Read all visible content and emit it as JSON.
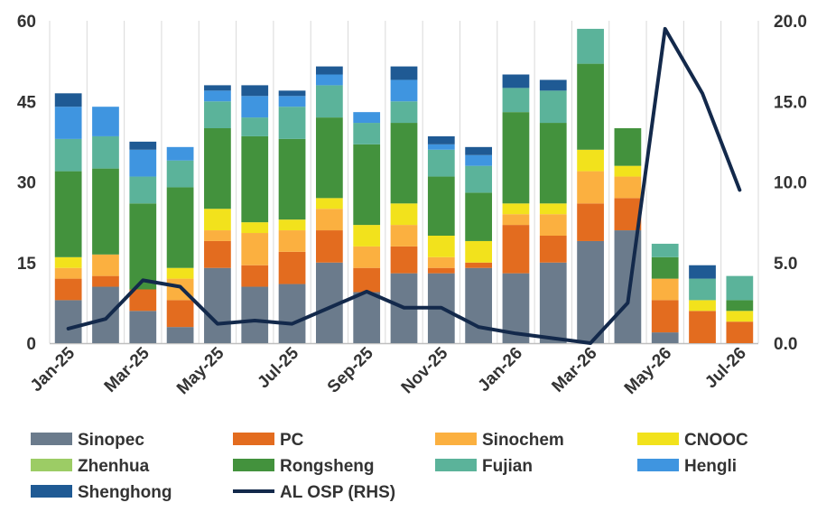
{
  "chart_data": {
    "type": "bar",
    "stacked": true,
    "title": "",
    "xlabel": "",
    "ylabel": "",
    "ylabel_right": "",
    "grid": "vertical",
    "legend_position": "bottom",
    "ylim": [
      0,
      60
    ],
    "ylim_right": [
      0,
      20
    ],
    "yticks": [
      "0",
      "15",
      "30",
      "45",
      "60"
    ],
    "yticks_right": [
      "0.0",
      "5.0",
      "10.0",
      "15.0",
      "20.0"
    ],
    "categories": [
      "Jan-25",
      "Feb-25",
      "Mar-25",
      "Apr-25",
      "May-25",
      "Jun-25",
      "Jul-25",
      "Aug-25",
      "Sep-25",
      "Oct-25",
      "Nov-25",
      "Dec-25",
      "Jan-26",
      "Feb-26",
      "Mar-26",
      "Apr-26",
      "May-26",
      "Jun-26",
      "Jul-26"
    ],
    "xtick_labels": [
      "Jan-25",
      "",
      "Mar-25",
      "",
      "May-25",
      "",
      "Jul-25",
      "",
      "Sep-25",
      "",
      "Nov-25",
      "",
      "Jan-26",
      "",
      "Mar-26",
      "",
      "May-26",
      "",
      "Jul-26"
    ],
    "series": [
      {
        "name": "Sinopec",
        "color": "#6b7b8c",
        "values": [
          8,
          10.5,
          6,
          3,
          14,
          10.5,
          11,
          15,
          9.5,
          13,
          13,
          14,
          13,
          15,
          19,
          21,
          2,
          0,
          0
        ]
      },
      {
        "name": "PC",
        "color": "#e36c1f",
        "values": [
          4,
          2,
          4,
          5,
          5,
          4,
          6,
          6,
          4.5,
          5,
          1,
          1,
          9,
          5,
          7,
          6,
          6,
          6,
          4
        ]
      },
      {
        "name": "Sinochem",
        "color": "#fbb040",
        "values": [
          2,
          4,
          0,
          4,
          2,
          6,
          4,
          4,
          4,
          4,
          2,
          0,
          2,
          4,
          6,
          4,
          4,
          0,
          0
        ]
      },
      {
        "name": "CNOOC",
        "color": "#f2e21c",
        "values": [
          2,
          0,
          0,
          2,
          4,
          2,
          2,
          2,
          4,
          4,
          4,
          4,
          2,
          2,
          4,
          2,
          0,
          2,
          2
        ]
      },
      {
        "name": "Zhenhua",
        "color": "#9ccc65",
        "values": [
          0,
          0,
          0,
          0,
          0,
          0,
          0,
          0,
          0,
          0,
          0,
          0,
          0,
          0,
          0,
          0,
          0,
          0,
          0
        ]
      },
      {
        "name": "Rongsheng",
        "color": "#43923d",
        "values": [
          16,
          16,
          16,
          15,
          15,
          16,
          15,
          15,
          15,
          15,
          11,
          9,
          17,
          15,
          16,
          7,
          4,
          0,
          2
        ]
      },
      {
        "name": "Fujian",
        "color": "#5bb39a",
        "values": [
          6,
          6,
          5,
          5,
          5,
          3.5,
          6,
          6,
          4,
          4,
          5,
          5,
          4.5,
          6,
          6.5,
          0,
          2.5,
          4,
          4.5
        ]
      },
      {
        "name": "Hengli",
        "color": "#3f95e0",
        "values": [
          6,
          5.5,
          5,
          2.5,
          2,
          4,
          2,
          2,
          2,
          4,
          1,
          2,
          0,
          0,
          0,
          0,
          0,
          0,
          0
        ]
      },
      {
        "name": "Shenghong",
        "color": "#1f5a94",
        "values": [
          2.5,
          0,
          1.5,
          0,
          1,
          2,
          1,
          1.5,
          0,
          2.5,
          1.5,
          1.5,
          2.5,
          2,
          0,
          0,
          0,
          2.5,
          0
        ]
      }
    ],
    "line_series": {
      "name": "AL OSP (RHS)",
      "color": "#13294b",
      "axis": "right",
      "values": [
        0.9,
        1.5,
        3.9,
        3.5,
        1.2,
        1.4,
        1.2,
        2.2,
        3.2,
        2.2,
        2.2,
        1.0,
        0.6,
        0.3,
        0.0,
        2.5,
        19.5,
        15.5,
        9.5
      ]
    }
  }
}
